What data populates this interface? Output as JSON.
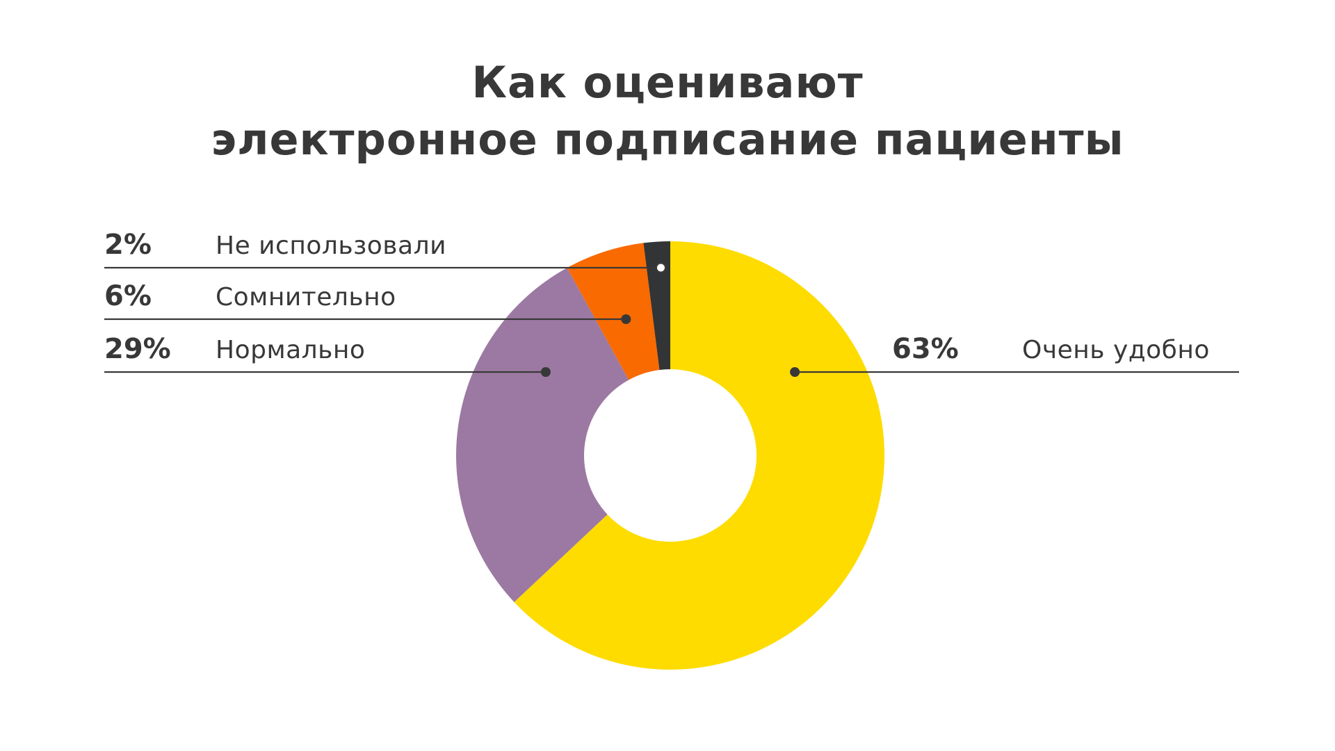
{
  "title": {
    "line1": "Как оценивают",
    "line2": "электронное подписание пациенты"
  },
  "chart_data": {
    "type": "pie",
    "variant": "donut",
    "start": "12 o'clock",
    "direction": "clockwise",
    "slices": [
      {
        "label": "Очень удобно",
        "value": 63,
        "value_label": "63%",
        "color": "#FEDC00"
      },
      {
        "label": "Нормально",
        "value": 29,
        "value_label": "29%",
        "color": "#9C79A2"
      },
      {
        "label": "Сомнительно",
        "value": 6,
        "value_label": "6%",
        "color": "#F96A00"
      },
      {
        "label": "Не использовали",
        "value": 2,
        "value_label": "2%",
        "color": "#333436"
      }
    ],
    "text_color": "#383838",
    "leader_color": "#383838"
  }
}
